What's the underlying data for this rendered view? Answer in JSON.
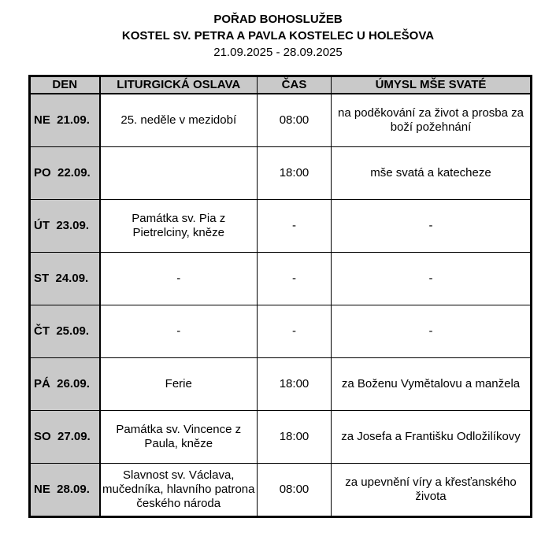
{
  "header": {
    "title": "POŘAD BOHOSLUŽEB",
    "subtitle": "KOSTEL SV. PETRA A PAVLA KOSTELEC U HOLEŠOVA",
    "date_range": "21.09.2025 - 28.09.2025"
  },
  "table": {
    "columns": [
      "DEN",
      "LITURGICKÁ OSLAVA",
      "ČAS",
      "ÚMYSL MŠE SVATÉ"
    ],
    "rows": [
      {
        "day": "NE  21.09.",
        "celebration": "25. neděle v mezidobí",
        "time": "08:00",
        "intention": "na poděkování za život a prosba za boží požehnání"
      },
      {
        "day": "PO  22.09.",
        "celebration": "",
        "time": "18:00",
        "intention": "mše svatá a katecheze"
      },
      {
        "day": "ÚT  23.09.",
        "celebration": "Památka sv. Pia z Pietrelciny, kněze",
        "time": "-",
        "intention": "-"
      },
      {
        "day": "ST  24.09.",
        "celebration": "-",
        "time": "-",
        "intention": "-"
      },
      {
        "day": "ČT  25.09.",
        "celebration": "-",
        "time": "-",
        "intention": "-"
      },
      {
        "day": "PÁ  26.09.",
        "celebration": "Ferie",
        "time": "18:00",
        "intention": "za Boženu Vymětalovu a manžela"
      },
      {
        "day": "SO  27.09.",
        "celebration": "Památka sv. Vincence z Paula, kněze",
        "time": "18:00",
        "intention": "za Josefa a Františku Odložilíkovy"
      },
      {
        "day": "NE  28.09.",
        "celebration": "Slavnost sv. Václava, mučedníka, hlavního patrona českého národa",
        "time": "08:00",
        "intention": "za upevnění víry a křesťanského života"
      }
    ]
  }
}
